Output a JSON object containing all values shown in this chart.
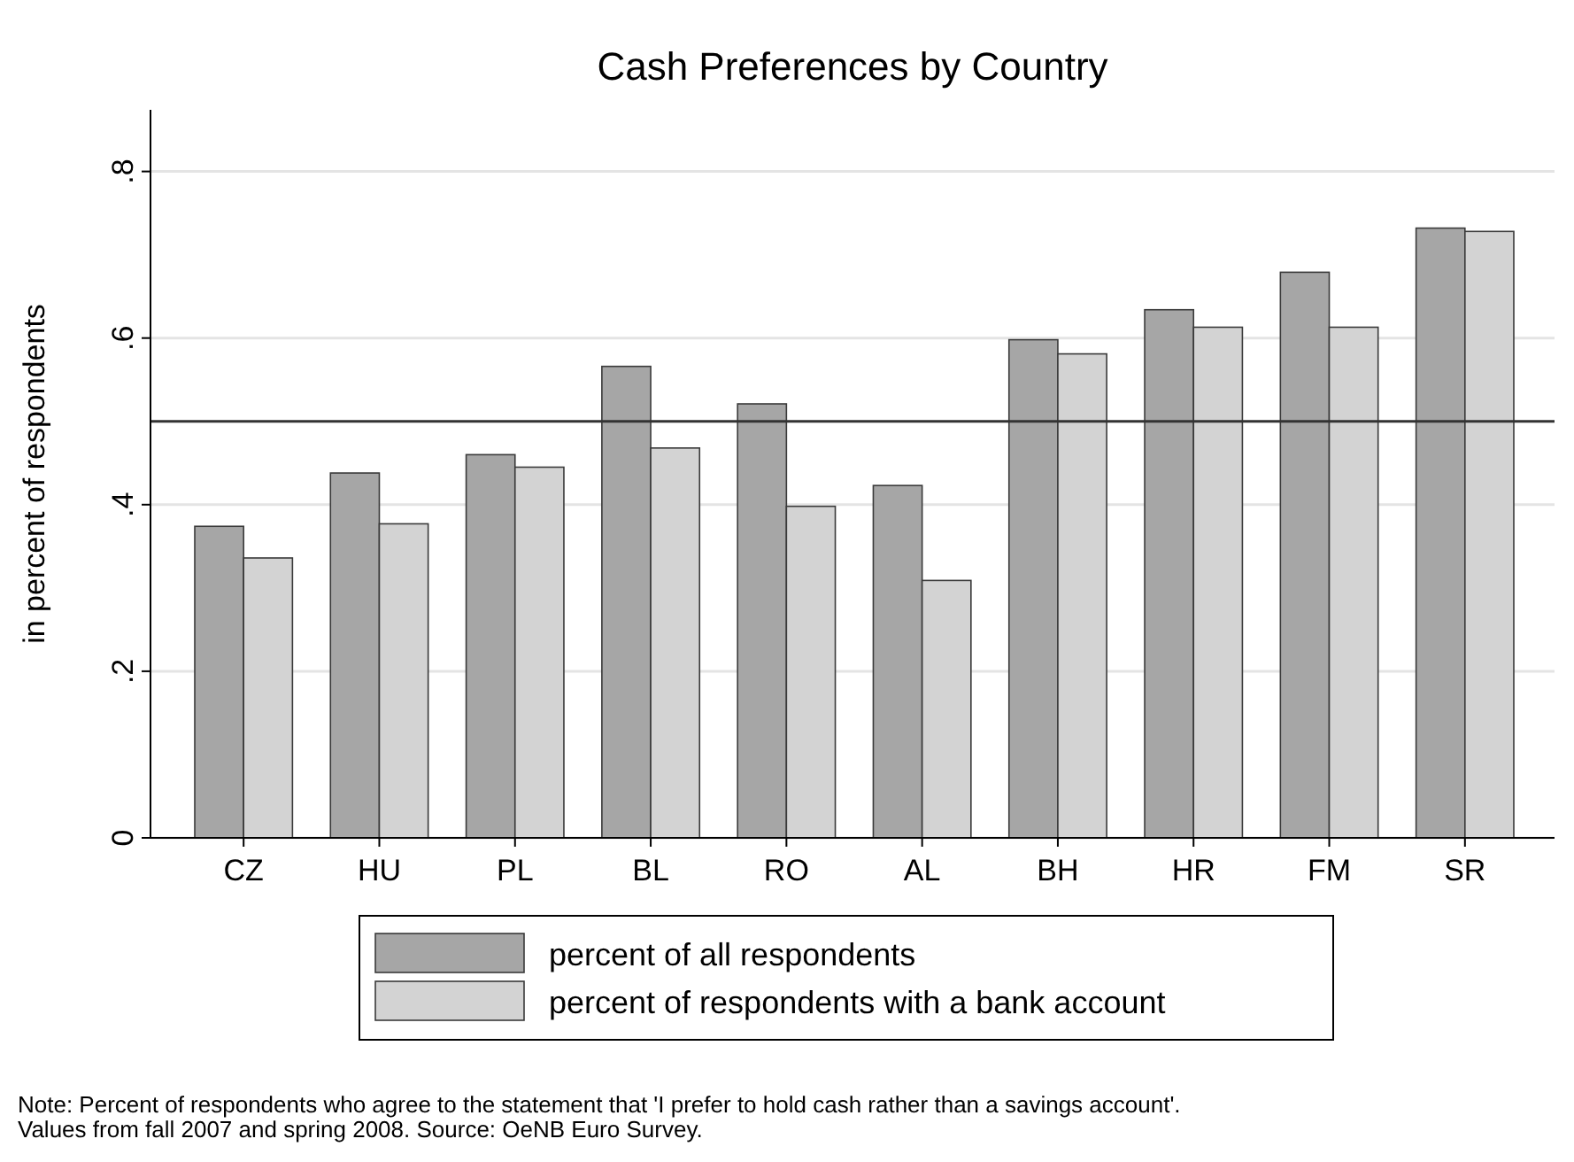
{
  "chart_data": {
    "type": "bar",
    "title": "Cash Preferences by Country",
    "ylabel": "in percent of respondents",
    "categories": [
      "CZ",
      "HU",
      "PL",
      "BL",
      "RO",
      "AL",
      "BH",
      "HR",
      "FM",
      "SR"
    ],
    "series": [
      {
        "name": "percent of all respondents",
        "color": "#a6a6a6",
        "values": [
          0.374,
          0.438,
          0.46,
          0.566,
          0.521,
          0.423,
          0.598,
          0.634,
          0.679,
          0.732
        ]
      },
      {
        "name": "percent of respondents with a bank account",
        "color": "#d3d3d3",
        "values": [
          0.336,
          0.377,
          0.445,
          0.468,
          0.398,
          0.309,
          0.581,
          0.613,
          0.613,
          0.728
        ]
      }
    ],
    "ylim": [
      0,
      0.874
    ],
    "yticks": [
      {
        "value": 0,
        "label": "0"
      },
      {
        "value": 0.2,
        "label": ".2"
      },
      {
        "value": 0.4,
        "label": ".4"
      },
      {
        "value": 0.6,
        "label": ".6"
      },
      {
        "value": 0.8,
        "label": ".8"
      }
    ],
    "grid": "y",
    "legend": "bottom",
    "ref_lines": [
      {
        "axis": "y",
        "value": 0.5,
        "color": "#333333"
      }
    ],
    "annotations": [
      "Note: Percent of respondents who agree to the statement that 'I prefer to hold cash rather than a savings account'. Values from fall 2007 and spring 2008. Source: OeNB Euro Survey."
    ]
  }
}
